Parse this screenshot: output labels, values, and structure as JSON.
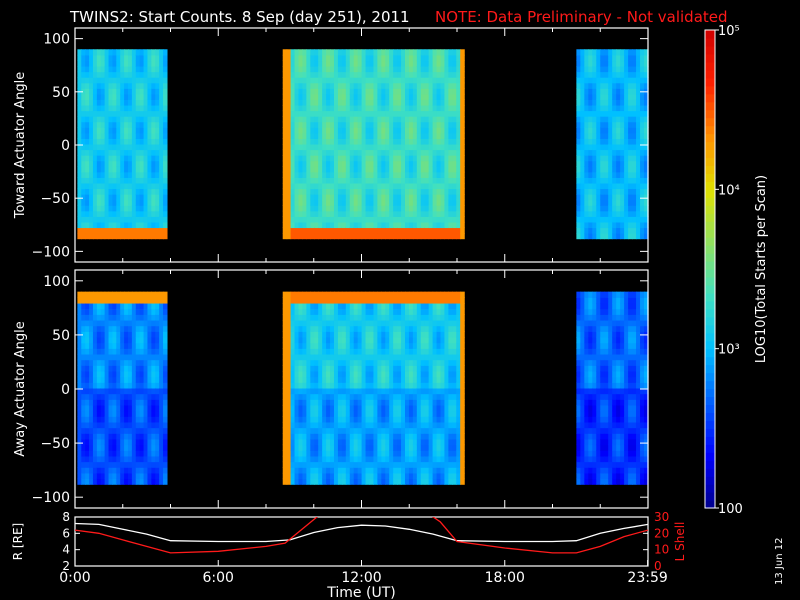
{
  "title": {
    "main": "TWINS2: Start Counts.  8 Sep (day 251), 2011",
    "note": "NOTE: Data Preliminary - Not validated"
  },
  "date_stamp": "13 Jun 12",
  "colors": {
    "background": "#000000",
    "axis": "#ffffff",
    "note": "#ff1a1a",
    "r_trace": "#ffffff",
    "lshell_trace": "#ff1a1a",
    "colormap": [
      "#00008c",
      "#0000ff",
      "#0060ff",
      "#00c0ff",
      "#40e0c0",
      "#90e060",
      "#e0e000",
      "#ff9000",
      "#ff2000",
      "#d00000"
    ]
  },
  "colorbar": {
    "label": "LOG10(Total Starts per Scan)",
    "scale": "log",
    "range": [
      100,
      100000
    ],
    "ticks": [
      {
        "value": 100,
        "label": "100"
      },
      {
        "value": 1000,
        "label": "10³"
      },
      {
        "value": 10000,
        "label": "10⁴"
      },
      {
        "value": 100000,
        "label": "10⁵"
      }
    ]
  },
  "chart_data": [
    {
      "type": "heatmap",
      "ylabel": "Toward Actuator Angle",
      "xlim_hours": [
        0,
        24
      ],
      "ylim": [
        -110,
        110
      ],
      "yticks": [
        "100",
        "50",
        "0",
        "−50",
        "−100"
      ],
      "ytick_values": [
        100,
        50,
        0,
        -50,
        -100
      ],
      "data_extent_y": [
        -88,
        90
      ],
      "coverage_hours": [
        [
          0.1,
          3.85
        ],
        [
          8.7,
          16.3
        ],
        [
          21.0,
          24.0
        ]
      ],
      "intensity_notes": "background ~10^3 starts/scan; high-count edges near -85 deg and around 9 UT and 16 UT",
      "segments": [
        {
          "start": 0.1,
          "end": 3.85,
          "base_log": 3.1,
          "edge_high": {
            "from": -90,
            "to": -82,
            "log": 4.4
          }
        },
        {
          "start": 8.7,
          "end": 16.3,
          "base_log": 3.3,
          "edge_high": {
            "from": -90,
            "to": -82,
            "log": 4.5
          }
        },
        {
          "start": 21.0,
          "end": 24.0,
          "base_log": 3.0
        }
      ]
    },
    {
      "type": "heatmap",
      "ylabel": "Away Actuator Angle",
      "xlim_hours": [
        0,
        24
      ],
      "ylim": [
        -110,
        110
      ],
      "yticks": [
        "100",
        "50",
        "0",
        "−50",
        "−100"
      ],
      "ytick_values": [
        100,
        50,
        0,
        -50,
        -100
      ],
      "data_extent_y": [
        -88,
        90
      ],
      "coverage_hours": [
        [
          0.1,
          3.85
        ],
        [
          8.7,
          16.3
        ],
        [
          21.0,
          24.0
        ]
      ],
      "intensity_notes": "lower counts below 0 deg; high-count edges near +85 deg and around 9 UT and 16 UT",
      "segments": [
        {
          "start": 0.1,
          "end": 3.85,
          "base_log": 2.8,
          "edge_high": {
            "from": 82,
            "to": 90,
            "log": 4.3
          }
        },
        {
          "start": 8.7,
          "end": 16.3,
          "base_log": 3.1,
          "edge_high": {
            "from": 82,
            "to": 90,
            "log": 4.4
          }
        },
        {
          "start": 21.0,
          "end": 24.0,
          "base_log": 2.7
        }
      ]
    },
    {
      "type": "line",
      "ylabel_left": "R [RE]",
      "ylabel_right": "L Shell",
      "xlabel": "Time (UT)",
      "xlim_hours": [
        0,
        24
      ],
      "xticks": [
        "0:00",
        "6:00",
        "12:00",
        "18:00",
        "23:59"
      ],
      "xtick_values": [
        0,
        6,
        12,
        18,
        23.983
      ],
      "ylim_left": [
        2,
        8
      ],
      "yticks_left": [
        "2",
        "4",
        "6",
        "8"
      ],
      "ylim_right": [
        0,
        30
      ],
      "yticks_right": [
        "0",
        "10",
        "20",
        "30"
      ],
      "series": [
        {
          "name": "R [RE]",
          "axis": "left",
          "x": [
            0,
            1,
            2,
            3,
            4,
            6,
            8,
            9,
            10,
            11,
            12,
            13,
            14,
            15,
            16,
            18,
            20,
            21,
            22,
            23,
            24
          ],
          "y": [
            7.2,
            7.1,
            6.5,
            5.9,
            5.1,
            5.0,
            5.0,
            5.2,
            6.1,
            6.7,
            7.0,
            6.9,
            6.5,
            5.9,
            5.1,
            5.0,
            5.0,
            5.1,
            6.0,
            6.6,
            7.1
          ]
        },
        {
          "name": "L Shell",
          "axis": "right",
          "x": [
            0,
            1,
            2,
            3,
            4,
            6,
            8,
            8.8,
            9.8,
            10.3,
            14.8,
            15.3,
            16,
            18,
            20,
            21,
            22,
            23,
            24
          ],
          "y": [
            22,
            20,
            16,
            12,
            8,
            9,
            12,
            14,
            26,
            32,
            32,
            27,
            15,
            11,
            8,
            8,
            12,
            18,
            22
          ]
        }
      ]
    }
  ]
}
